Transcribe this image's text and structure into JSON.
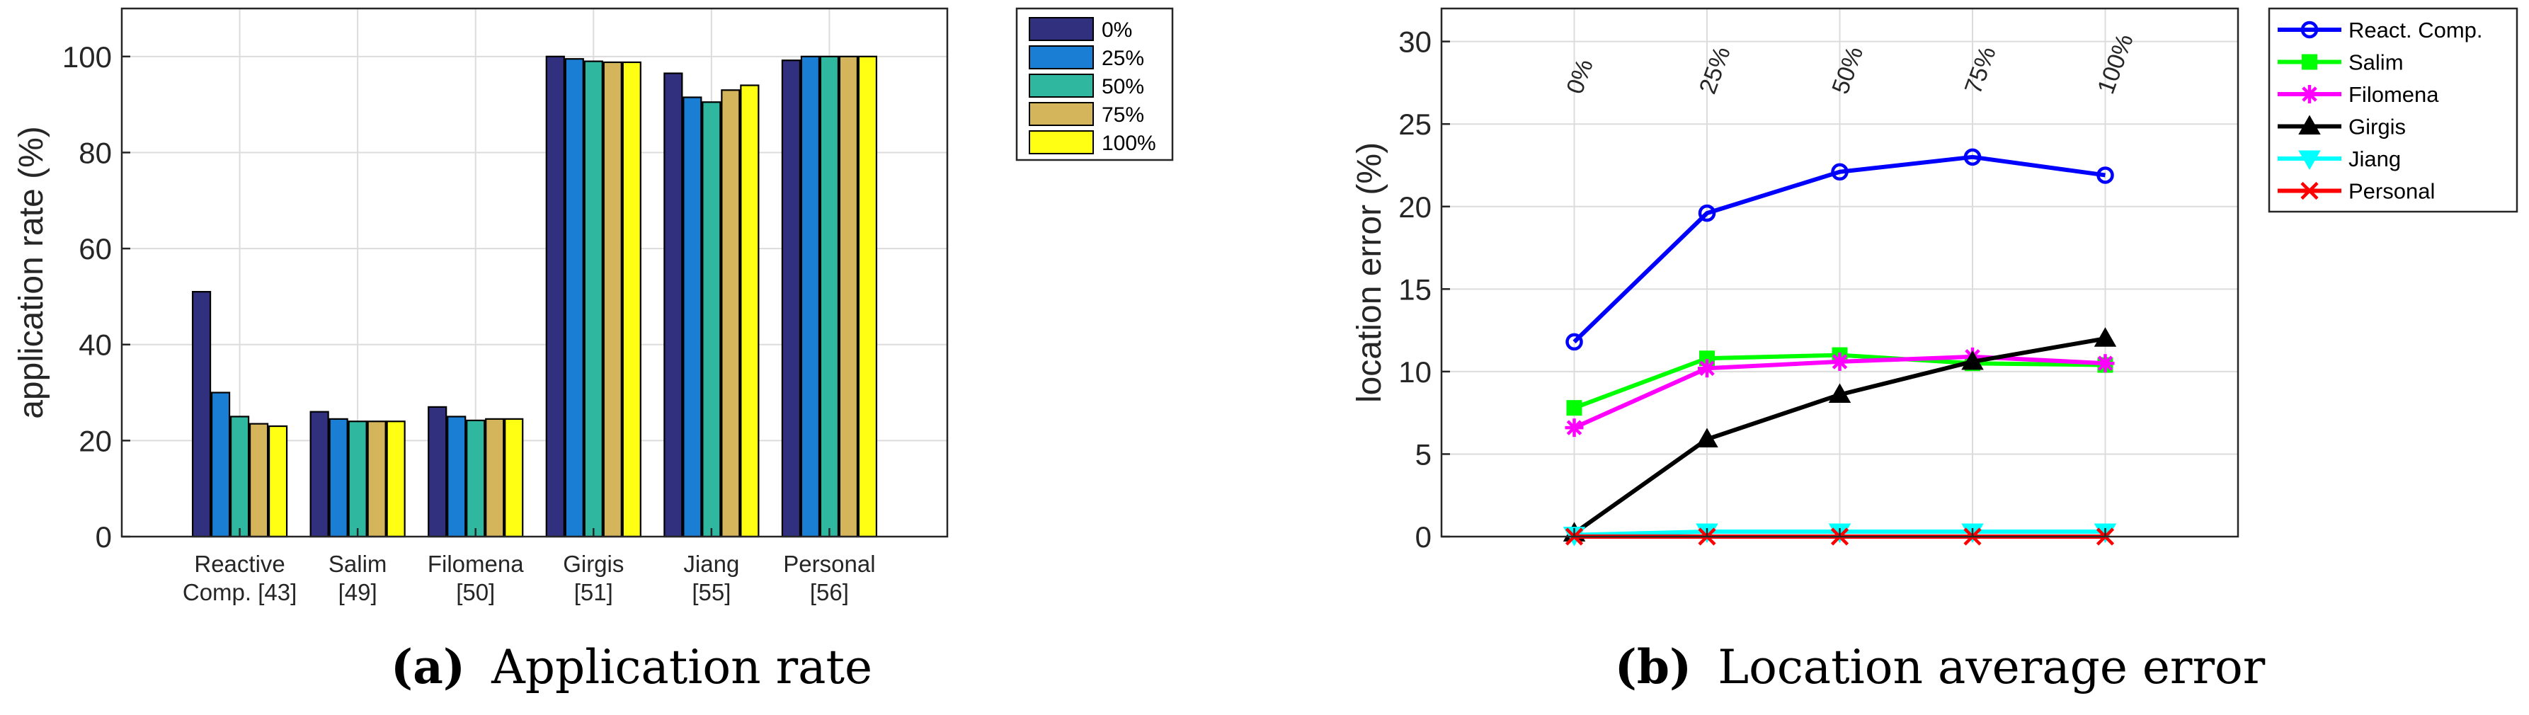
{
  "chart_data": [
    {
      "type": "bar",
      "caption": {
        "label": "(a)",
        "text": "Application rate"
      },
      "ylabel": "application rate (%)",
      "xlabel": "",
      "ylim": [
        0,
        110
      ],
      "yticks": [
        0,
        20,
        40,
        60,
        80,
        100
      ],
      "grid": true,
      "legend_position": "top-right outside",
      "categories": [
        [
          "Reactive",
          "Comp. [43]"
        ],
        [
          "Salim",
          "[49]"
        ],
        [
          "Filomena",
          "[50]"
        ],
        [
          "Girgis",
          "[51]"
        ],
        [
          "Jiang",
          "[55]"
        ],
        [
          "Personal",
          "[56]"
        ]
      ],
      "series": [
        {
          "name": "0%",
          "color": "#31307f",
          "values": [
            51,
            26,
            27,
            100,
            96.5,
            99.2
          ]
        },
        {
          "name": "25%",
          "color": "#1a7fd4",
          "values": [
            30,
            24.5,
            25,
            99.5,
            91.5,
            100
          ]
        },
        {
          "name": "50%",
          "color": "#2fb7a0",
          "values": [
            25,
            24,
            24.2,
            99,
            90.5,
            100
          ]
        },
        {
          "name": "75%",
          "color": "#d4b55b",
          "values": [
            23.5,
            24,
            24.5,
            98.8,
            93,
            100
          ]
        },
        {
          "name": "100%",
          "color": "#ffff14",
          "values": [
            23,
            24,
            24.5,
            98.8,
            94,
            100
          ]
        }
      ]
    },
    {
      "type": "line",
      "caption": {
        "label": "(b)",
        "text": "Location average error"
      },
      "ylabel": "location error (%)",
      "xlabel": "",
      "ylim": [
        0,
        32
      ],
      "yticks": [
        0,
        5,
        10,
        15,
        20,
        25,
        30
      ],
      "grid": true,
      "legend_position": "top-right outside",
      "x": [
        "0%",
        "25%",
        "50%",
        "75%",
        "100%"
      ],
      "series": [
        {
          "name": "React. Comp.",
          "color": "#0000ff",
          "marker": "circle",
          "values": [
            11.8,
            19.6,
            22.1,
            23.0,
            21.9
          ]
        },
        {
          "name": "Salim",
          "color": "#00ff00",
          "marker": "square",
          "values": [
            7.8,
            10.8,
            11.0,
            10.5,
            10.4
          ]
        },
        {
          "name": "Filomena",
          "color": "#ff00ff",
          "marker": "asterisk",
          "values": [
            6.6,
            10.2,
            10.6,
            10.9,
            10.5
          ]
        },
        {
          "name": "Girgis",
          "color": "#000000",
          "marker": "triangle-up",
          "values": [
            0.2,
            5.9,
            8.6,
            10.6,
            12.0
          ]
        },
        {
          "name": "Jiang",
          "color": "#00ffff",
          "marker": "triangle-down",
          "values": [
            0.1,
            0.3,
            0.3,
            0.3,
            0.3
          ]
        },
        {
          "name": "Personal",
          "color": "#ff0000",
          "marker": "x",
          "values": [
            0.0,
            0.0,
            0.0,
            0.0,
            0.0
          ]
        }
      ]
    }
  ]
}
